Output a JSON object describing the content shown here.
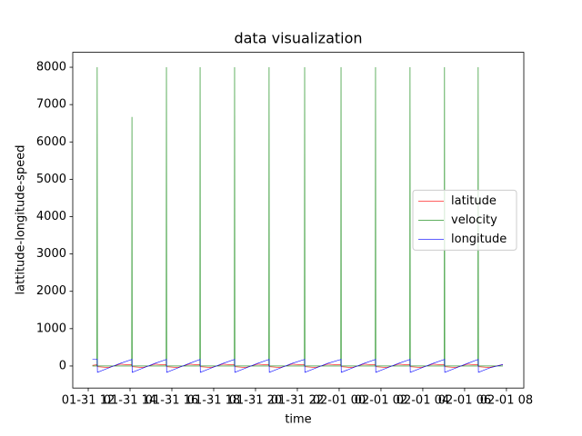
{
  "chart_data": {
    "type": "line",
    "title": "data visualization",
    "x_label": "time",
    "y_label": "lattitude-longitude-speed",
    "x": [
      12.2,
      12.42,
      12.43,
      12.44,
      12.98,
      13.53,
      14.08,
      14.09,
      14.1,
      14.64,
      15.19,
      15.73,
      15.74,
      15.75,
      16.29,
      16.84,
      17.34,
      17.35,
      17.36,
      17.9,
      18.45,
      18.99,
      19.0,
      19.01,
      19.55,
      20.1,
      20.64,
      20.65,
      20.66,
      21.2,
      21.75,
      22.34,
      22.35,
      22.36,
      22.9,
      23.45,
      24.08,
      24.09,
      24.1,
      24.64,
      25.19,
      25.73,
      25.74,
      25.75,
      26.29,
      26.84,
      27.38,
      27.39,
      27.4,
      27.94,
      28.49,
      29.03,
      29.04,
      29.05,
      29.59,
      30.14,
      30.64,
      30.65,
      30.66,
      31.2,
      31.83
    ],
    "series": [
      {
        "name": "latitude",
        "color": "red",
        "values": [
          20,
          30,
          30,
          -20,
          -40,
          50,
          30,
          30,
          -20,
          -40,
          50,
          30,
          30,
          -20,
          -40,
          50,
          30,
          30,
          -20,
          -40,
          50,
          30,
          30,
          -20,
          -40,
          50,
          30,
          30,
          -20,
          -40,
          50,
          30,
          30,
          -20,
          -40,
          50,
          30,
          30,
          -20,
          -40,
          50,
          30,
          30,
          -20,
          -40,
          50,
          30,
          30,
          -20,
          -40,
          50,
          30,
          30,
          -20,
          -40,
          50,
          30,
          30,
          -20,
          -40,
          40
        ]
      },
      {
        "name": "velocity",
        "color": "green",
        "values": [
          0,
          0,
          8000,
          0,
          0,
          0,
          0,
          6670,
          0,
          0,
          0,
          0,
          8000,
          0,
          0,
          0,
          0,
          8000,
          0,
          0,
          0,
          0,
          8000,
          0,
          0,
          0,
          0,
          8000,
          0,
          0,
          0,
          0,
          8000,
          0,
          0,
          0,
          0,
          8000,
          0,
          0,
          0,
          0,
          8000,
          0,
          0,
          0,
          0,
          8000,
          0,
          0,
          0,
          0,
          8000,
          0,
          0,
          0,
          0,
          8000,
          0,
          0,
          0
        ]
      },
      {
        "name": "longitude",
        "color": "blue",
        "values": [
          175,
          175,
          180,
          -170,
          -50,
          70,
          175,
          180,
          -170,
          -50,
          70,
          175,
          180,
          -170,
          -50,
          70,
          175,
          180,
          -170,
          -50,
          70,
          175,
          180,
          -170,
          -50,
          70,
          175,
          180,
          -170,
          -50,
          70,
          175,
          180,
          -170,
          -50,
          70,
          175,
          180,
          -170,
          -50,
          70,
          175,
          180,
          -170,
          -50,
          70,
          175,
          180,
          -170,
          -50,
          70,
          175,
          180,
          -170,
          -50,
          70,
          175,
          180,
          -170,
          -50,
          40
        ]
      }
    ],
    "xlim": [
      11.26,
      32.83
    ],
    "xticks": [
      {
        "value": 12,
        "label": "01-31 12"
      },
      {
        "value": 14,
        "label": "01-31 14"
      },
      {
        "value": 16,
        "label": "01-31 16"
      },
      {
        "value": 18,
        "label": "01-31 18"
      },
      {
        "value": 20,
        "label": "01-31 20"
      },
      {
        "value": 22,
        "label": "01-31 22"
      },
      {
        "value": 24,
        "label": "02-01 00"
      },
      {
        "value": 26,
        "label": "02-01 02"
      },
      {
        "value": 28,
        "label": "02-01 04"
      },
      {
        "value": 30,
        "label": "02-01 06"
      },
      {
        "value": 32,
        "label": "02-01 08"
      }
    ],
    "ylim": [
      -590,
      8400
    ],
    "yticks": [
      0,
      1000,
      2000,
      3000,
      4000,
      5000,
      6000,
      7000,
      8000
    ],
    "legend": "center right"
  }
}
